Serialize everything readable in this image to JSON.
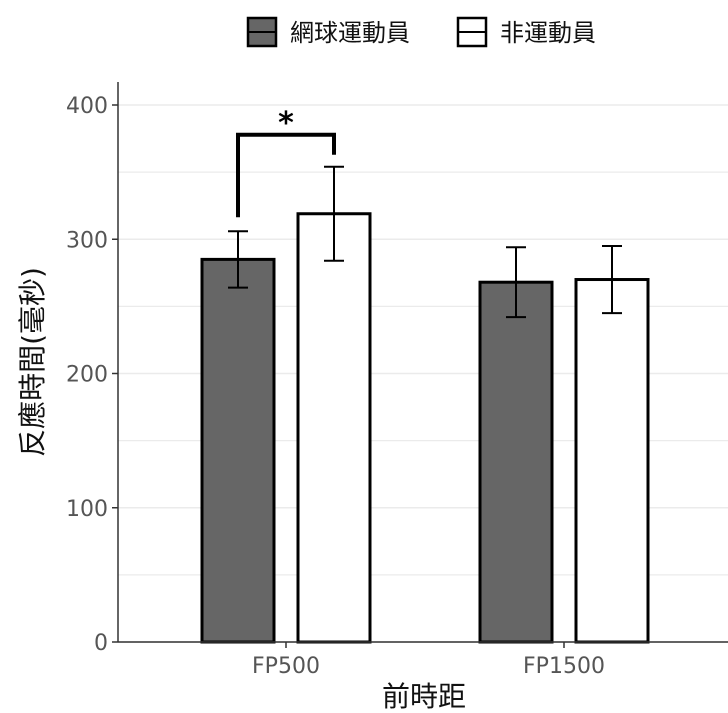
{
  "chart_data": {
    "type": "bar",
    "xlabel": "前時距",
    "ylabel": "反應時間(毫秒)",
    "categories": [
      "FP500",
      "FP1500"
    ],
    "series": [
      {
        "name": "網球運動員",
        "values": [
          285,
          268
        ],
        "error": [
          21,
          26
        ],
        "color": "#666666"
      },
      {
        "name": "非運動員",
        "values": [
          319,
          270
        ],
        "error": [
          35,
          25
        ],
        "color": "#ffffff"
      }
    ],
    "ylim": [
      0,
      400
    ],
    "yticks": [
      0,
      100,
      200,
      300,
      400
    ],
    "grid": true,
    "legend_position": "top",
    "annotations": [
      {
        "text": "*",
        "category": "FP500",
        "between_series": [
          0,
          1
        ]
      }
    ]
  }
}
